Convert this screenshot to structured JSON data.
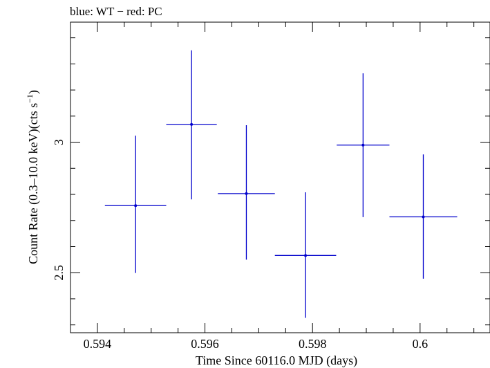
{
  "chart_data": {
    "type": "scatter",
    "title": "blue: WT − red: PC",
    "xlabel": "Time Since 60116.0 MJD (days)",
    "ylabel_main": "Count Rate (0.3–10.0 keV)(cts s",
    "ylabel_sup": "−1",
    "ylabel_end": ")",
    "xlim": [
      0.5935,
      0.6013
    ],
    "ylim": [
      2.27,
      3.46
    ],
    "x_major_ticks": [
      0.594,
      0.596,
      0.598,
      0.6
    ],
    "x_tick_labels": [
      "0.594",
      "0.596",
      "0.598",
      "0.6"
    ],
    "x_minor_step": 0.0005,
    "y_major_ticks": [
      2.5,
      3.0
    ],
    "y_tick_labels": [
      "2.5",
      "3"
    ],
    "y_minor_step": 0.1,
    "grid": false,
    "series": [
      {
        "color": "#0000cc",
        "points": [
          {
            "x": 0.59471,
            "xerr": 0.00057,
            "y": 2.757,
            "yerr_lo": 0.258,
            "yerr_hi": 0.268
          },
          {
            "x": 0.59575,
            "xerr": 0.00047,
            "y": 3.068,
            "yerr_lo": 0.287,
            "yerr_hi": 0.284
          },
          {
            "x": 0.59677,
            "xerr": 0.00053,
            "y": 2.803,
            "yerr_lo": 0.253,
            "yerr_hi": 0.262
          },
          {
            "x": 0.59787,
            "xerr": 0.00057,
            "y": 2.566,
            "yerr_lo": 0.239,
            "yerr_hi": 0.242
          },
          {
            "x": 0.59894,
            "xerr": 0.00049,
            "y": 2.989,
            "yerr_lo": 0.276,
            "yerr_hi": 0.275
          },
          {
            "x": 0.60006,
            "xerr": 0.00063,
            "y": 2.714,
            "yerr_lo": 0.237,
            "yerr_hi": 0.239
          }
        ]
      }
    ]
  }
}
